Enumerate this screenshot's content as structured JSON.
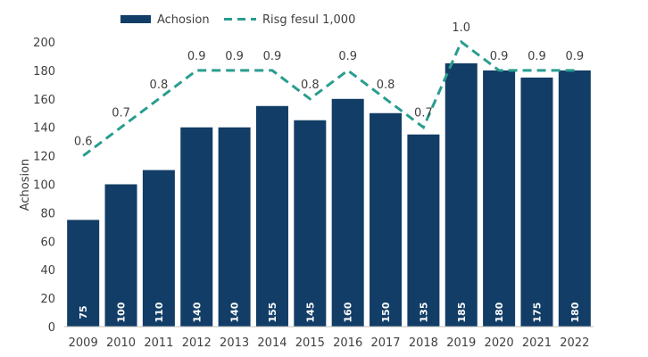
{
  "chart_data": {
    "type": "bar",
    "categories": [
      "2009",
      "2010",
      "2011",
      "2012",
      "2013",
      "2014",
      "2015",
      "2016",
      "2017",
      "2018",
      "2019",
      "2020",
      "2021",
      "2022"
    ],
    "ylabel": "Achosion",
    "ylim": [
      0,
      200
    ],
    "yticks": [
      0,
      20,
      40,
      60,
      80,
      100,
      120,
      140,
      160,
      180,
      200
    ],
    "grid": false,
    "legend_position": "top",
    "series": [
      {
        "name": "Achosion",
        "type": "bar",
        "color": "#123d66",
        "values": [
          75,
          100,
          110,
          140,
          140,
          155,
          145,
          160,
          150,
          135,
          185,
          180,
          175,
          180
        ]
      },
      {
        "name": "Risg fesul 1,000",
        "type": "line",
        "style": "dashed",
        "color": "#2a9d8f",
        "values": [
          0.6,
          0.7,
          0.8,
          0.9,
          0.9,
          0.9,
          0.8,
          0.9,
          0.8,
          0.7,
          1.0,
          0.9,
          0.9,
          0.9
        ],
        "labels": [
          "0.6",
          "0.7",
          "0.8",
          "0.9",
          "0.9",
          "0.9",
          "0.8",
          "0.9",
          "0.8",
          "0.7",
          "1.0",
          "0.9",
          "0.9",
          "0.9"
        ]
      }
    ]
  }
}
